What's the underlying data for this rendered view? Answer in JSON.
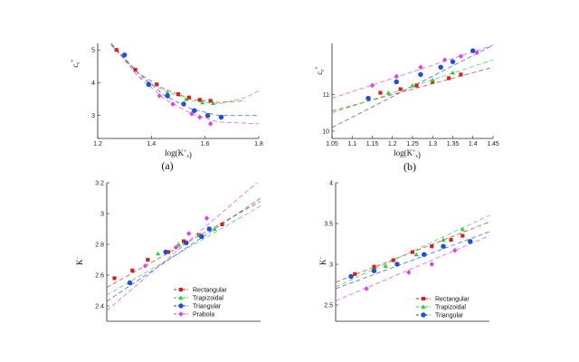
{
  "colors": {
    "Rectangular": "#d42020",
    "Trapizoidal": "#2ecc40",
    "Triangular": "#2050d0",
    "Prabola": "#e040e0",
    "axis": "#222222"
  },
  "chart_data": [
    {
      "id": "a",
      "type": "scatter",
      "caption": "(a)",
      "xlabel": "log(K_s^+)",
      "ylabel": "c_r^+",
      "xlim": [
        1.2,
        1.8
      ],
      "ylim": [
        2.3,
        5.2
      ],
      "xticks": [
        1.2,
        1.4,
        1.6,
        1.8
      ],
      "xtick_labels": [
        "1.2",
        "1.4",
        "1.6",
        "1.8"
      ],
      "yticks": [
        3,
        4,
        5
      ],
      "ytick_labels": [
        "3",
        "4",
        "5"
      ],
      "series": [
        {
          "name": "Rectangular",
          "marker": "square",
          "x": [
            1.27,
            1.34,
            1.42,
            1.5,
            1.54,
            1.58,
            1.62
          ],
          "y": [
            5.0,
            4.4,
            3.95,
            3.65,
            3.55,
            3.48,
            3.45
          ]
        },
        {
          "name": "Trapizoidal",
          "marker": "triangle",
          "x": [
            1.39,
            1.46,
            1.53,
            1.59,
            1.63
          ],
          "y": [
            3.95,
            3.7,
            3.5,
            3.4,
            3.38
          ]
        },
        {
          "name": "Triangular",
          "marker": "circle",
          "x": [
            1.3,
            1.39,
            1.46,
            1.52,
            1.56,
            1.61,
            1.66
          ],
          "y": [
            4.85,
            3.95,
            3.6,
            3.35,
            3.15,
            3.0,
            2.95
          ]
        },
        {
          "name": "Prabola",
          "marker": "diamond",
          "x": [
            1.43,
            1.48,
            1.55,
            1.58,
            1.62
          ],
          "y": [
            3.6,
            3.35,
            3.05,
            2.95,
            2.75
          ]
        }
      ],
      "fits": [
        {
          "series": "Rectangular",
          "x": [
            1.25,
            1.35,
            1.45,
            1.55,
            1.65,
            1.75
          ],
          "y": [
            5.15,
            4.3,
            3.8,
            3.5,
            3.4,
            3.45
          ]
        },
        {
          "series": "Trapizoidal",
          "x": [
            1.25,
            1.35,
            1.45,
            1.55,
            1.65,
            1.75,
            1.8
          ],
          "y": [
            5.2,
            4.2,
            3.75,
            3.45,
            3.35,
            3.55,
            3.75
          ]
        },
        {
          "series": "Triangular",
          "x": [
            1.25,
            1.35,
            1.45,
            1.55,
            1.65,
            1.8
          ],
          "y": [
            5.2,
            4.3,
            3.6,
            3.2,
            3.0,
            3.0
          ]
        },
        {
          "series": "Prabola",
          "x": [
            1.25,
            1.35,
            1.45,
            1.55,
            1.65,
            1.8
          ],
          "y": [
            5.2,
            4.2,
            3.5,
            3.05,
            2.8,
            2.75
          ]
        }
      ]
    },
    {
      "id": "b",
      "type": "scatter",
      "caption": "(b)",
      "xlabel": "log(K_s^+)",
      "ylabel": "c_r^+",
      "xlim": [
        1.05,
        1.45
      ],
      "ylim": [
        9.8,
        12.4
      ],
      "xticks": [
        1.05,
        1.1,
        1.15,
        1.2,
        1.25,
        1.3,
        1.35,
        1.4,
        1.45
      ],
      "xtick_labels": [
        "1.05",
        "1.1",
        "1.15",
        "1.2",
        "1.25",
        "1.3",
        "1.35",
        "1.4",
        "1.45"
      ],
      "yticks": [
        10,
        11
      ],
      "ytick_labels": [
        "10",
        "11"
      ],
      "series": [
        {
          "name": "Rectangular",
          "marker": "square",
          "x": [
            1.17,
            1.22,
            1.26,
            1.3,
            1.34,
            1.37
          ],
          "y": [
            11.05,
            11.15,
            11.25,
            11.35,
            11.45,
            11.55
          ]
        },
        {
          "name": "Trapizoidal",
          "marker": "triangle",
          "x": [
            1.19,
            1.25,
            1.3,
            1.35
          ],
          "y": [
            11.05,
            11.25,
            11.4,
            11.6
          ]
        },
        {
          "name": "Triangular",
          "marker": "circle",
          "x": [
            1.14,
            1.21,
            1.27,
            1.32,
            1.35,
            1.4
          ],
          "y": [
            10.9,
            11.35,
            11.55,
            11.75,
            11.9,
            12.2
          ]
        },
        {
          "name": "Prabola",
          "marker": "diamond",
          "x": [
            1.15,
            1.21,
            1.27,
            1.33,
            1.37,
            1.41
          ],
          "y": [
            11.25,
            11.5,
            11.75,
            11.95,
            12.05,
            12.15
          ]
        }
      ],
      "fits": [
        {
          "series": "Rectangular",
          "x": [
            1.05,
            1.45
          ],
          "y": [
            10.55,
            11.75
          ]
        },
        {
          "series": "Trapizoidal",
          "x": [
            1.05,
            1.45
          ],
          "y": [
            10.5,
            11.95
          ]
        },
        {
          "series": "Triangular",
          "x": [
            1.05,
            1.45
          ],
          "y": [
            10.1,
            12.35
          ]
        },
        {
          "series": "Prabola",
          "x": [
            1.05,
            1.45
          ],
          "y": [
            10.9,
            12.35
          ]
        }
      ]
    },
    {
      "id": "c",
      "type": "scatter",
      "xlabel": "",
      "ylabel": "K^-",
      "xlim": [
        1.2,
        1.8
      ],
      "ylim": [
        2.3,
        3.2
      ],
      "yticks": [
        2.4,
        2.6,
        2.8,
        3.0,
        3.2
      ],
      "ytick_labels": [
        "2.4",
        "2.6",
        "2.8",
        "3",
        "3.2"
      ],
      "legend": {
        "placement": "bottom-right",
        "entries": [
          "Rectangular",
          "Trapizoidal",
          "Triangular",
          "Prabola"
        ]
      },
      "series": [
        {
          "name": "Rectangular",
          "marker": "square",
          "x": [
            1.23,
            1.3,
            1.36,
            1.44,
            1.5,
            1.56,
            1.6,
            1.65
          ],
          "y": [
            2.58,
            2.63,
            2.7,
            2.75,
            2.82,
            2.86,
            2.9,
            2.93
          ]
        },
        {
          "name": "Trapizoidal",
          "marker": "triangle",
          "x": [
            1.4,
            1.48,
            1.56,
            1.62
          ],
          "y": [
            2.74,
            2.8,
            2.86,
            2.9
          ]
        },
        {
          "name": "Triangular",
          "marker": "circle",
          "x": [
            1.29,
            1.43,
            1.51,
            1.57,
            1.6
          ],
          "y": [
            2.55,
            2.75,
            2.81,
            2.85,
            2.9
          ]
        },
        {
          "name": "Prabola",
          "marker": "diamond",
          "x": [
            1.35,
            1.47,
            1.52,
            1.59
          ],
          "y": [
            2.66,
            2.78,
            2.87,
            2.97
          ]
        }
      ],
      "fits": [
        {
          "series": "Rectangular",
          "x": [
            1.2,
            1.8
          ],
          "y": [
            2.52,
            3.08
          ]
        },
        {
          "series": "Trapizoidal",
          "x": [
            1.2,
            1.8
          ],
          "y": [
            2.47,
            3.05
          ]
        },
        {
          "series": "Triangular",
          "x": [
            1.2,
            1.8
          ],
          "y": [
            2.43,
            3.1
          ]
        },
        {
          "series": "Prabola",
          "x": [
            1.2,
            1.8
          ],
          "y": [
            2.37,
            3.22
          ]
        }
      ]
    },
    {
      "id": "d",
      "type": "scatter",
      "xlabel": "",
      "ylabel": "K^-",
      "xlim": [
        1.05,
        1.45
      ],
      "ylim": [
        2.3,
        4.0
      ],
      "yticks": [
        2.5,
        3.0,
        3.5,
        4.0
      ],
      "ytick_labels": [
        "2.5",
        "3",
        "3.5",
        "4"
      ],
      "legend": {
        "placement": "bottom-right",
        "entries": [
          "Rectangular",
          "Trapizoidal",
          "Triangular"
        ]
      },
      "series": [
        {
          "name": "Rectangular",
          "marker": "square",
          "x": [
            1.1,
            1.15,
            1.2,
            1.25,
            1.3,
            1.35,
            1.38
          ],
          "y": [
            2.88,
            2.97,
            3.05,
            3.15,
            3.22,
            3.3,
            3.35
          ]
        },
        {
          "name": "Trapizoidal",
          "marker": "triangle",
          "x": [
            1.18,
            1.26,
            1.33,
            1.38
          ],
          "y": [
            2.98,
            3.12,
            3.3,
            3.43
          ]
        },
        {
          "name": "Triangular",
          "marker": "circle",
          "x": [
            1.09,
            1.15,
            1.21,
            1.28,
            1.33,
            1.4
          ],
          "y": [
            2.85,
            2.92,
            3.0,
            3.12,
            3.22,
            3.28
          ]
        },
        {
          "name": "Prabola",
          "marker": "diamond",
          "x": [
            1.13,
            1.24,
            1.3,
            1.36
          ],
          "y": [
            2.7,
            2.9,
            3.0,
            3.17
          ]
        }
      ],
      "fits": [
        {
          "series": "Rectangular",
          "x": [
            1.05,
            1.45
          ],
          "y": [
            2.78,
            3.52
          ]
        },
        {
          "series": "Trapizoidal",
          "x": [
            1.05,
            1.45
          ],
          "y": [
            2.72,
            3.6
          ]
        },
        {
          "series": "Triangular",
          "x": [
            1.05,
            1.45
          ],
          "y": [
            2.7,
            3.4
          ]
        },
        {
          "series": "Prabola",
          "x": [
            1.05,
            1.45
          ],
          "y": [
            2.55,
            3.35
          ]
        }
      ]
    }
  ]
}
